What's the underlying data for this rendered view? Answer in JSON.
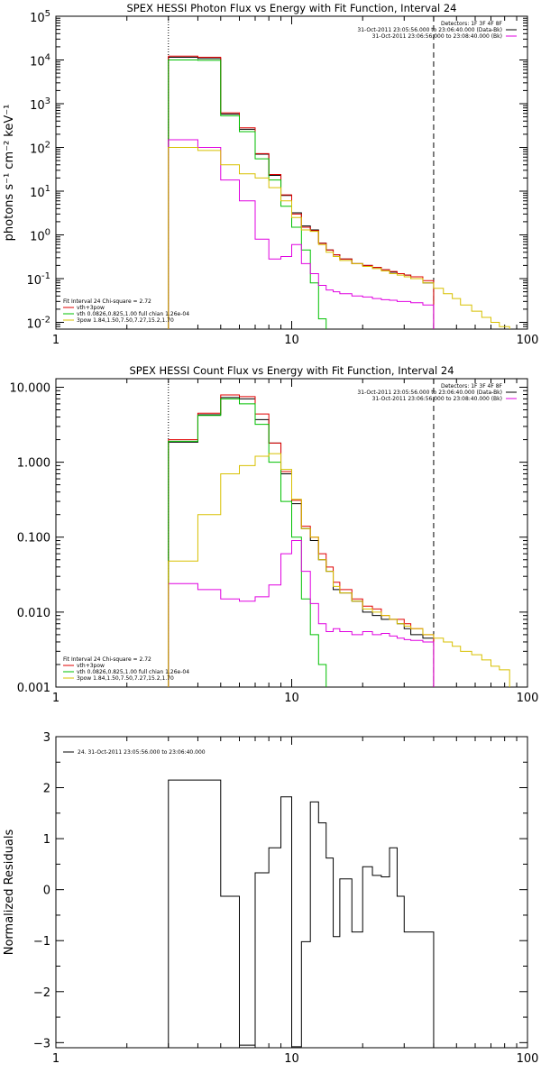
{
  "chart_data": [
    {
      "type": "line",
      "title": "SPEX HESSI Photon Flux vs Energy with Fit Function, Interval 24",
      "xlabel": "",
      "ylabel": "photons s⁻¹ cm⁻² keV⁻¹",
      "xscale": "log",
      "yscale": "log",
      "xlim": [
        1,
        100
      ],
      "ylim": [
        0.007,
        100000
      ],
      "xticks": [
        "1",
        "10",
        "100"
      ],
      "yticks": [
        {
          "v": 0.01,
          "base": "10",
          "exp": "-2"
        },
        {
          "v": 0.1,
          "base": "10",
          "exp": "-1"
        },
        {
          "v": 1,
          "base": "10",
          "exp": "0"
        },
        {
          "v": 10,
          "base": "10",
          "exp": "1"
        },
        {
          "v": 100,
          "base": "10",
          "exp": "2"
        },
        {
          "v": 1000,
          "base": "10",
          "exp": "3"
        },
        {
          "v": 10000,
          "base": "10",
          "exp": "4"
        },
        {
          "v": 100000,
          "base": "10",
          "exp": "5"
        }
      ],
      "vlines": [
        {
          "x": 3.0,
          "style": "dotted"
        },
        {
          "x": 40.0,
          "style": "dashed"
        }
      ],
      "legend_topright": {
        "lines": [
          {
            "text": "Detectors: 1F 3F 4F 8F",
            "color": ""
          },
          {
            "text": "31-Oct-2011 23:05:56.000 to 23:06:40.000 (Data-Bk)",
            "color": "#000000"
          },
          {
            "text": "31-Oct-2011 23:06:56.000 to 23:08:40.000 (Bk)",
            "color": "#e000e0"
          }
        ]
      },
      "legend_bottomleft": {
        "lines": [
          {
            "text": "Fit Interval 24    Chi-square = 2.72",
            "color": ""
          },
          {
            "text": "vth+3pow",
            "color": "#e00000"
          },
          {
            "text": "vth 0.0826,0.825,1.00  full chian 1.26e-04",
            "color": "#00c000"
          },
          {
            "text": "3pow 1.84,1.50,7.50,7.27,15.2,1.70",
            "color": "#d8c000"
          }
        ]
      },
      "series": [
        {
          "color": "#000000",
          "step": true,
          "x0": [
            3.0,
            4.0,
            5.0,
            6.0,
            7.0,
            8.0,
            9.0,
            10.0,
            11.0,
            12.0,
            13.0,
            14.0,
            15.0,
            16.0,
            18.0,
            20.0,
            22.0,
            24.0,
            26.0,
            28.0,
            30.0,
            32.0,
            36.0
          ],
          "y": [
            11500,
            10800,
            580,
            260,
            70,
            23,
            8,
            3.2,
            1.6,
            1.3,
            0.65,
            0.45,
            0.35,
            0.28,
            0.22,
            0.2,
            0.18,
            0.16,
            0.14,
            0.13,
            0.12,
            0.1,
            0.08
          ],
          "xend": 40.0
        },
        {
          "color": "#e00000",
          "step": true,
          "x0": [
            3.0,
            4.0,
            5.0,
            6.0,
            7.0,
            8.0,
            9.0,
            10.0,
            11.0,
            12.0,
            13.0,
            14.0,
            15.0,
            16.0,
            18.0,
            20.0,
            22.0,
            24.0,
            26.0,
            28.0,
            30.0,
            32.0,
            36.0
          ],
          "y": [
            12200,
            11500,
            620,
            280,
            72,
            24,
            8.2,
            3.0,
            1.5,
            1.25,
            0.64,
            0.45,
            0.35,
            0.28,
            0.22,
            0.2,
            0.18,
            0.16,
            0.145,
            0.13,
            0.12,
            0.11,
            0.09
          ],
          "xend": 40.0
        },
        {
          "color": "#00c000",
          "step": true,
          "x0": [
            3.0,
            4.0,
            5.0,
            6.0,
            7.0,
            8.0,
            9.0,
            10.0,
            11.0,
            12.0,
            13.0
          ],
          "y": [
            10000,
            9800,
            530,
            230,
            55,
            18,
            4.5,
            1.5,
            0.45,
            0.08,
            0.012
          ],
          "xend": 14.0
        },
        {
          "color": "#e000e0",
          "step": true,
          "x0": [
            3.0,
            4.0,
            5.0,
            6.0,
            7.0,
            8.0,
            9.0,
            10.0,
            11.0,
            12.0,
            13.0,
            14.0,
            15.0,
            16.0,
            18.0,
            20.0,
            22.0,
            24.0,
            26.0,
            28.0,
            30.0,
            32.0,
            36.0
          ],
          "y": [
            150,
            100,
            18,
            6,
            0.8,
            0.28,
            0.32,
            0.6,
            0.22,
            0.13,
            0.07,
            0.055,
            0.05,
            0.045,
            0.04,
            0.038,
            0.035,
            0.033,
            0.032,
            0.03,
            0.03,
            0.028,
            0.025
          ],
          "xend": 40.0
        },
        {
          "color": "#d8c000",
          "step": true,
          "x0": [
            3.0,
            4.0,
            5.0,
            6.0,
            7.0,
            8.0,
            9.0,
            10.0,
            11.0,
            12.0,
            13.0,
            14.0,
            15.0,
            16.0,
            18.0,
            20.0,
            22.0,
            24.0,
            26.0,
            28.0,
            30.0,
            32.0,
            36.0,
            40.0,
            44.0,
            48.0,
            52.0,
            58.0,
            64.0,
            70.0,
            76.0
          ],
          "y": [
            100,
            85,
            40,
            25,
            20,
            12,
            6,
            2.5,
            1.3,
            1.2,
            0.6,
            0.4,
            0.32,
            0.26,
            0.22,
            0.19,
            0.17,
            0.15,
            0.13,
            0.12,
            0.11,
            0.1,
            0.08,
            0.06,
            0.045,
            0.035,
            0.025,
            0.018,
            0.013,
            0.01,
            0.008
          ],
          "xend": 84.0
        }
      ]
    },
    {
      "type": "line",
      "title": "SPEX HESSI Count Flux vs Energy with Fit Function, Interval 24",
      "xlabel": "",
      "ylabel": "",
      "xscale": "log",
      "yscale": "log",
      "xlim": [
        1,
        100
      ],
      "ylim": [
        0.001,
        13
      ],
      "xticks": [
        "1",
        "10",
        "100"
      ],
      "yticks": [
        {
          "v": 0.001,
          "label": "0.001"
        },
        {
          "v": 0.01,
          "label": "0.010"
        },
        {
          "v": 0.1,
          "label": "0.100"
        },
        {
          "v": 1,
          "label": "1.000"
        },
        {
          "v": 10,
          "label": "10.000"
        }
      ],
      "vlines": [
        {
          "x": 3.0,
          "style": "dotted"
        },
        {
          "x": 40.0,
          "style": "dashed"
        }
      ],
      "legend_topright": {
        "lines": [
          {
            "text": "Detectors: 1F 3F 4F 8F",
            "color": ""
          },
          {
            "text": "31-Oct-2011 23:05:56.000 to 23:06:40.000 (Data-Bk)",
            "color": "#000000"
          },
          {
            "text": "31-Oct-2011 23:06:56.000 to 23:08:40.000 (Bk)",
            "color": "#e000e0"
          }
        ]
      },
      "legend_bottomleft": {
        "lines": [
          {
            "text": "Fit Interval 24    Chi-square = 2.72",
            "color": ""
          },
          {
            "text": "vth+3pow",
            "color": "#e00000"
          },
          {
            "text": "vth 0.0826,0.825,1.00  full chian 1.26e-04",
            "color": "#00c000"
          },
          {
            "text": "3pow 1.84,1.50,7.50,7.27,15.2,1.70",
            "color": "#d8c000"
          }
        ]
      },
      "series": [
        {
          "color": "#000000",
          "step": true,
          "x0": [
            3.0,
            4.0,
            5.0,
            6.0,
            7.0,
            8.0,
            9.0,
            10.0,
            11.0,
            12.0,
            13.0,
            14.0,
            15.0,
            16.0,
            18.0,
            20.0,
            22.0,
            24.0,
            26.0,
            28.0,
            30.0,
            32.0,
            36.0
          ],
          "y": [
            1.85,
            4.3,
            7.3,
            7.0,
            3.7,
            1.8,
            0.7,
            0.28,
            0.13,
            0.09,
            0.05,
            0.035,
            0.02,
            0.018,
            0.014,
            0.01,
            0.009,
            0.008,
            0.008,
            0.007,
            0.006,
            0.005,
            0.0045
          ],
          "xend": 40.0
        },
        {
          "color": "#e00000",
          "step": true,
          "x0": [
            3.0,
            4.0,
            5.0,
            6.0,
            7.0,
            8.0,
            9.0,
            10.0,
            11.0,
            12.0,
            13.0,
            14.0,
            15.0,
            16.0,
            18.0,
            20.0,
            22.0,
            24.0,
            26.0,
            28.0,
            30.0,
            32.0,
            36.0
          ],
          "y": [
            2.0,
            4.5,
            7.9,
            7.5,
            4.4,
            1.8,
            0.75,
            0.31,
            0.14,
            0.1,
            0.06,
            0.04,
            0.025,
            0.02,
            0.015,
            0.012,
            0.011,
            0.009,
            0.008,
            0.008,
            0.007,
            0.006,
            0.005
          ],
          "xend": 40.0
        },
        {
          "color": "#00c000",
          "step": true,
          "x0": [
            3.0,
            4.0,
            5.0,
            6.0,
            7.0,
            8.0,
            9.0,
            10.0,
            11.0,
            12.0,
            13.0
          ],
          "y": [
            1.9,
            4.2,
            7.0,
            6.0,
            3.2,
            1.0,
            0.3,
            0.1,
            0.015,
            0.005,
            0.002
          ],
          "xend": 14.0
        },
        {
          "color": "#e000e0",
          "step": true,
          "x0": [
            3.0,
            4.0,
            5.0,
            6.0,
            7.0,
            8.0,
            9.0,
            10.0,
            11.0,
            12.0,
            13.0,
            14.0,
            15.0,
            16.0,
            18.0,
            20.0,
            22.0,
            24.0,
            26.0,
            28.0,
            30.0,
            32.0,
            36.0
          ],
          "y": [
            0.024,
            0.02,
            0.015,
            0.014,
            0.016,
            0.023,
            0.06,
            0.09,
            0.035,
            0.013,
            0.007,
            0.0055,
            0.006,
            0.0055,
            0.005,
            0.0055,
            0.005,
            0.0052,
            0.0048,
            0.0045,
            0.0043,
            0.0042,
            0.004
          ],
          "xend": 40.0
        },
        {
          "color": "#d8c000",
          "step": true,
          "x0": [
            3.0,
            4.0,
            5.0,
            6.0,
            7.0,
            8.0,
            9.0,
            10.0,
            11.0,
            12.0,
            13.0,
            14.0,
            15.0,
            16.0,
            18.0,
            20.0,
            22.0,
            24.0,
            26.0,
            28.0,
            30.0,
            32.0,
            36.0,
            40.0,
            44.0,
            48.0,
            52.0,
            58.0,
            64.0,
            70.0,
            76.0
          ],
          "y": [
            0.048,
            0.2,
            0.7,
            0.9,
            1.2,
            1.3,
            0.8,
            0.32,
            0.13,
            0.1,
            0.05,
            0.035,
            0.022,
            0.018,
            0.014,
            0.011,
            0.01,
            0.009,
            0.008,
            0.007,
            0.0065,
            0.006,
            0.005,
            0.0045,
            0.004,
            0.0035,
            0.003,
            0.0027,
            0.0023,
            0.0019,
            0.0017
          ],
          "xend": 84.0
        }
      ]
    },
    {
      "type": "line",
      "title": "",
      "xlabel": "",
      "ylabel": "Normalized Residuals",
      "xscale": "log",
      "yscale": "linear",
      "xlim": [
        1,
        100
      ],
      "ylim": [
        -3.1,
        3.0
      ],
      "xticks": [
        "1",
        "10",
        "100"
      ],
      "yticks": [
        {
          "v": -3,
          "label": "−3"
        },
        {
          "v": -2,
          "label": "−2"
        },
        {
          "v": -1,
          "label": "−1"
        },
        {
          "v": 0,
          "label": "0"
        },
        {
          "v": 1,
          "label": "1"
        },
        {
          "v": 2,
          "label": "2"
        },
        {
          "v": 3,
          "label": "3"
        }
      ],
      "legend_topleft": {
        "lines": [
          {
            "text": "24. 31-Oct-2011 23:05:56.000 to 23:06:40.000",
            "color": "#000000"
          }
        ]
      },
      "series": [
        {
          "color": "#000000",
          "step": true,
          "x0": [
            3.0,
            4.0,
            5.0,
            6.0,
            7.0,
            8.0,
            9.0,
            10.0,
            11.0,
            12.0,
            13.0,
            14.0,
            15.0,
            16.0,
            18.0,
            20.0,
            22.0,
            24.0,
            26.0,
            28.0,
            30.0,
            32.0,
            36.0
          ],
          "y": [
            2.15,
            2.15,
            -0.13,
            -3.05,
            0.33,
            0.82,
            1.82,
            -3.08,
            -1.02,
            1.72,
            1.31,
            0.62,
            -0.92,
            0.21,
            -0.83,
            0.45,
            0.28,
            0.25,
            0.82,
            -0.13,
            -0.83,
            -0.83,
            -0.83
          ],
          "xend": 40.0
        }
      ]
    }
  ]
}
